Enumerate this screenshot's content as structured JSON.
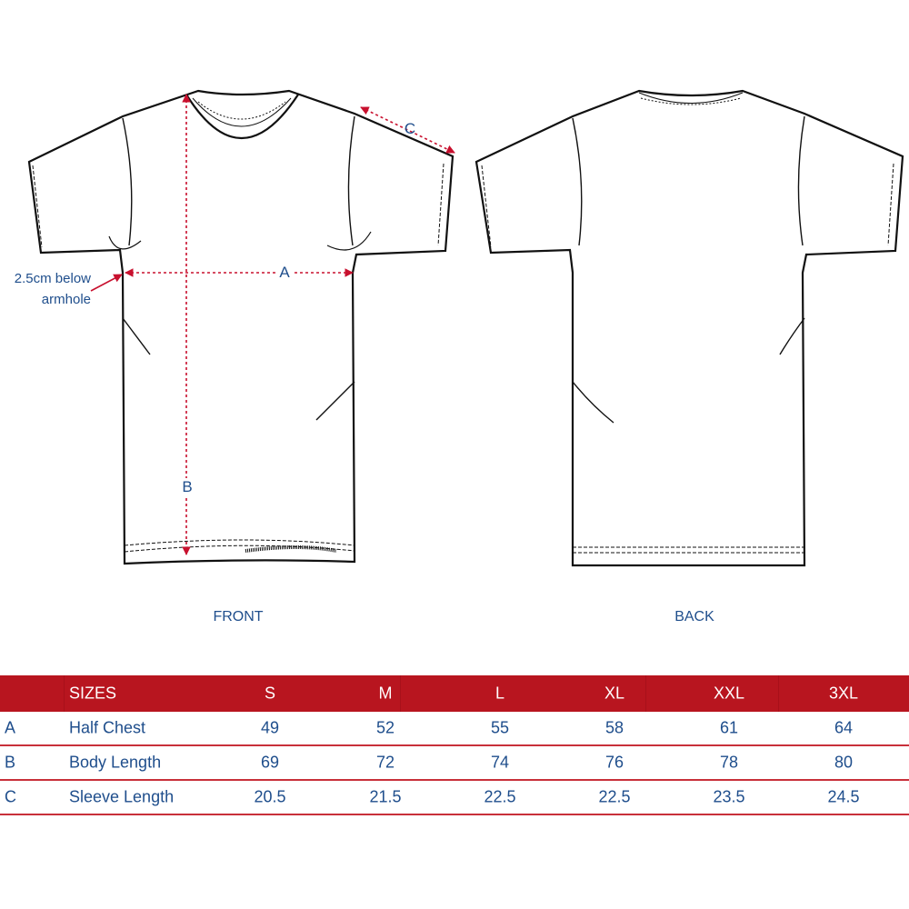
{
  "diagram": {
    "front_label": "FRONT",
    "back_label": "BACK",
    "measure_a": "A",
    "measure_b": "B",
    "measure_c": "C",
    "note_line1": "2.5cm below",
    "note_line2": "armhole",
    "colors": {
      "accent_red": "#b8151f",
      "text_blue": "#1f4e8c",
      "outline": "#111111"
    }
  },
  "table": {
    "header": [
      "SIZES",
      "S",
      "M",
      "L",
      "XL",
      "XXL",
      "3XL"
    ],
    "rows": [
      {
        "key": "A",
        "label": "Half Chest",
        "values": [
          "49",
          "52",
          "55",
          "58",
          "61",
          "64"
        ]
      },
      {
        "key": "B",
        "label": "Body Length",
        "values": [
          "69",
          "72",
          "74",
          "76",
          "78",
          "80"
        ]
      },
      {
        "key": "C",
        "label": "Sleeve Length",
        "values": [
          "20.5",
          "21.5",
          "22.5",
          "22.5",
          "23.5",
          "24.5"
        ]
      }
    ]
  }
}
